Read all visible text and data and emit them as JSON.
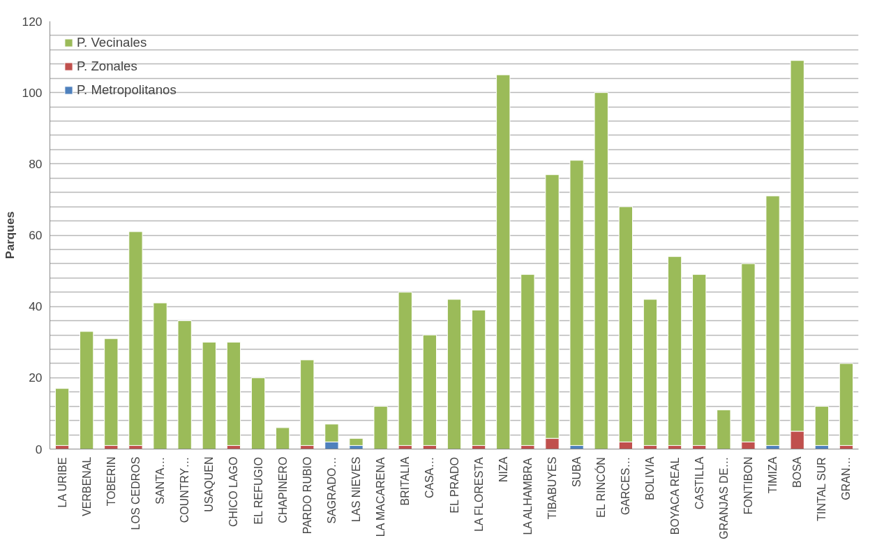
{
  "chart_data": {
    "type": "bar",
    "stacked": true,
    "ylabel": "Parques",
    "categories": [
      "LA URIBE",
      "VERBENAL",
      "TOBERIN",
      "LOS CEDROS",
      "SANTA…",
      "COUNTRY…",
      "USAQUEN",
      "CHICO LAGO",
      "EL REFUGIO",
      "CHAPINERO",
      "PARDO RUBIO",
      "SAGRADO…",
      "LAS NIEVES",
      "LA MACARENA",
      "BRITALIA",
      "CASA…",
      "EL PRADO",
      "LA FLORESTA",
      "NIZA",
      "LA ALHAMBRA",
      "TIBABUYES",
      "SUBA",
      "EL RINCÓN",
      "GARCES…",
      "BOLIVIA",
      "BOYACA REAL",
      "CASTILLA",
      "GRANJAS DE…",
      "FONTIBON",
      "TIMIZA",
      "BOSA",
      "TINTAL SUR",
      "GRAN…"
    ],
    "series": [
      {
        "name": "P. Metropolitanos",
        "color": "#4f81bd",
        "values": [
          0,
          0,
          0,
          0,
          0,
          0,
          0,
          0,
          0,
          0,
          0,
          2,
          1,
          0,
          0,
          0,
          0,
          0,
          0,
          0,
          0,
          1,
          0,
          0,
          0,
          0,
          0,
          0,
          0,
          1,
          0,
          1,
          0
        ]
      },
      {
        "name": "P. Zonales",
        "color": "#c0504d",
        "values": [
          1,
          0,
          1,
          1,
          0,
          0,
          0,
          1,
          0,
          0,
          1,
          0,
          0,
          0,
          1,
          1,
          0,
          1,
          0,
          1,
          3,
          0,
          0,
          2,
          1,
          1,
          1,
          0,
          2,
          0,
          5,
          0,
          1
        ]
      },
      {
        "name": "P. Vecinales",
        "color": "#9bbb59",
        "values": [
          16,
          33,
          30,
          60,
          41,
          36,
          30,
          29,
          20,
          6,
          24,
          5,
          2,
          12,
          43,
          31,
          42,
          38,
          105,
          48,
          74,
          80,
          100,
          66,
          41,
          53,
          48,
          11,
          50,
          70,
          104,
          11,
          23
        ]
      }
    ],
    "ylim": [
      0,
      120
    ],
    "yticks": [
      0,
      {
        "value": 4,
        "label": null
      },
      {
        "value": 8,
        "label": null
      },
      {
        "value": 12,
        "label": null
      },
      {
        "value": 16,
        "label": null
      },
      20,
      {
        "value": 24,
        "label": null
      },
      {
        "value": 28,
        "label": null
      },
      {
        "value": 32,
        "label": null
      },
      {
        "value": 36,
        "label": null
      },
      40,
      {
        "value": 44,
        "label": null
      },
      {
        "value": 48,
        "label": null
      },
      {
        "value": 52,
        "label": null
      },
      {
        "value": 56,
        "label": null
      },
      60,
      {
        "value": 64,
        "label": null
      },
      {
        "value": 68,
        "label": null
      },
      {
        "value": 72,
        "label": null
      },
      {
        "value": 76,
        "label": null
      },
      80,
      {
        "value": 84,
        "label": null
      },
      {
        "value": 88,
        "label": null
      },
      {
        "value": 92,
        "label": null
      },
      {
        "value": 96,
        "label": null
      },
      100,
      {
        "value": 104,
        "label": null
      },
      {
        "value": 108,
        "label": null
      },
      {
        "value": 112,
        "label": null
      },
      {
        "value": 116,
        "label": null
      },
      120
    ],
    "grid": "y",
    "legend": "top left"
  }
}
